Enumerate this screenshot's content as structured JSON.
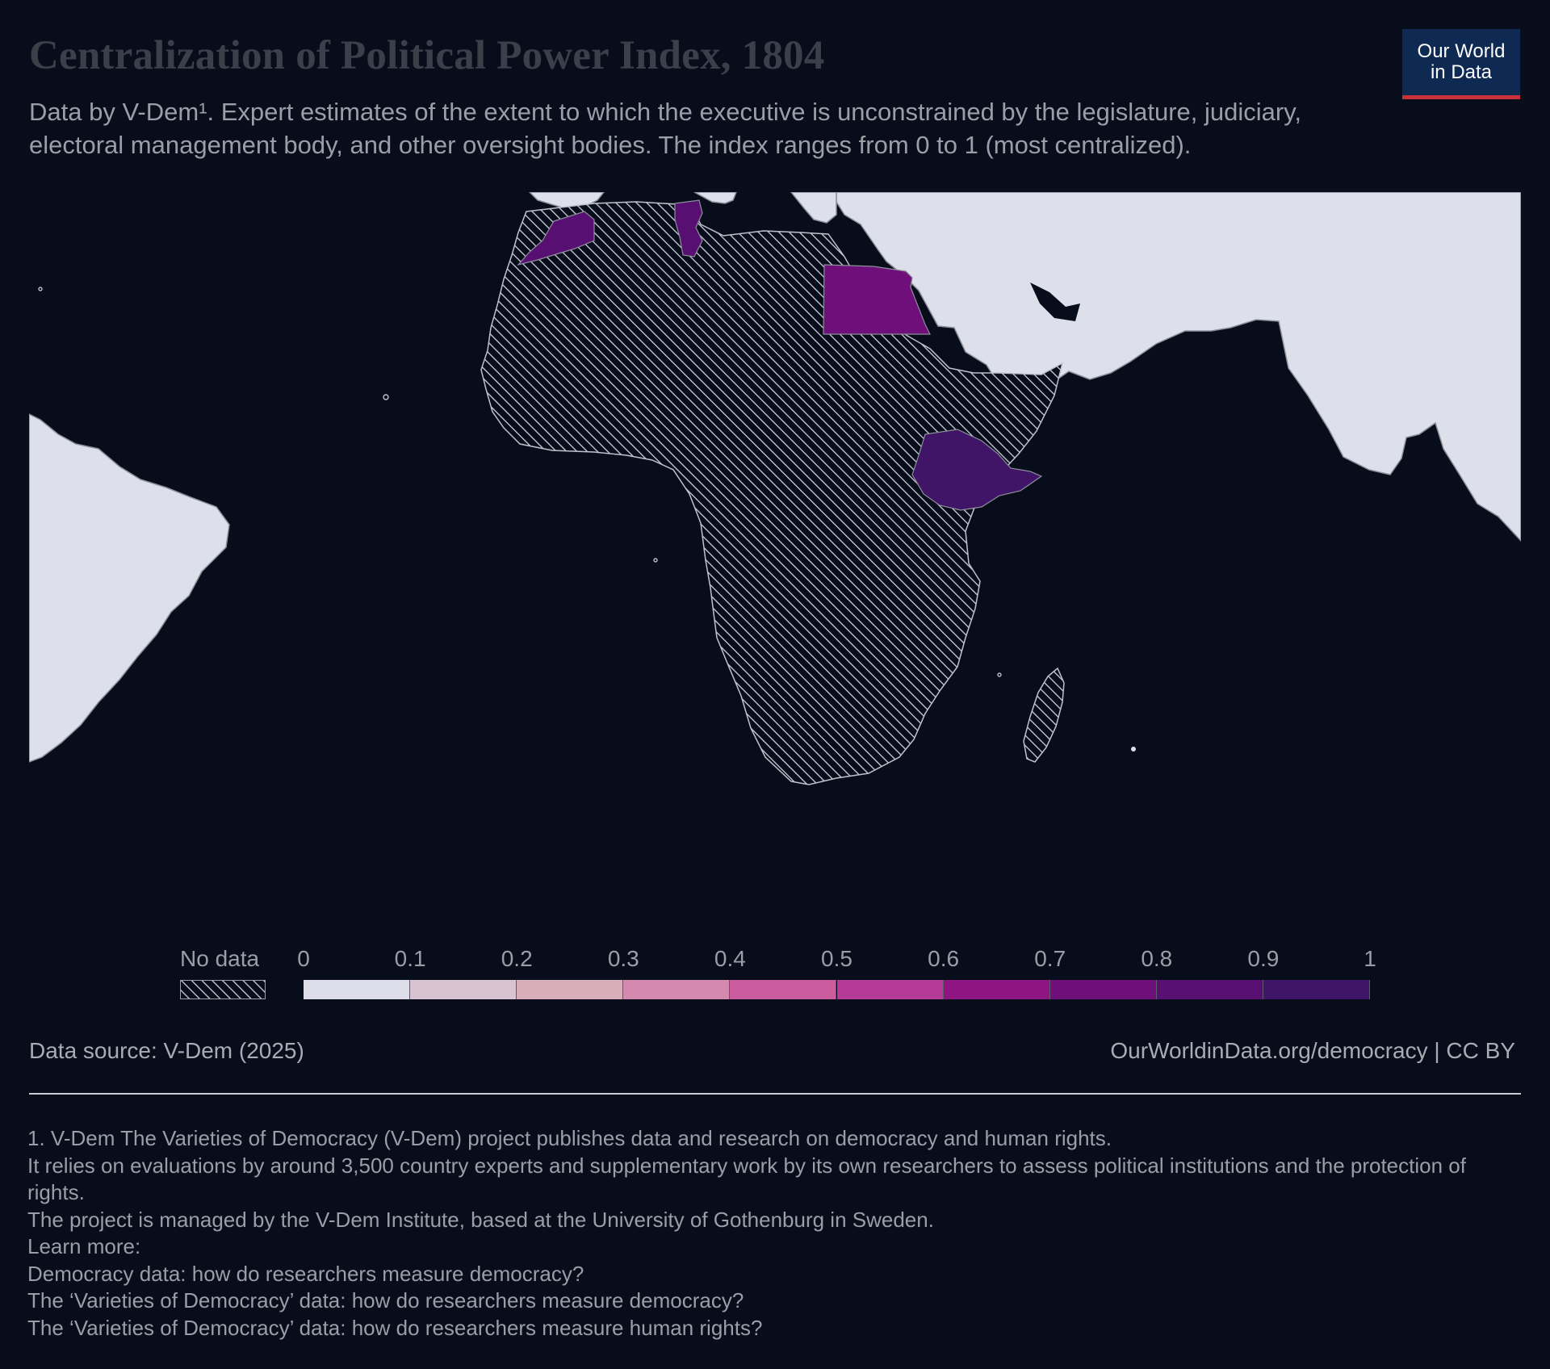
{
  "header": {
    "title": "Centralization of Political Power Index, 1804",
    "subtitle": "Data by V-Dem¹. Expert estimates of the extent to which the executive is unconstrained by the legislature, judiciary, electoral management body, and other oversight bodies. The index ranges from 0 to 1 (most centralized).",
    "logo_line1": "Our World",
    "logo_line2": "in Data"
  },
  "map": {
    "region_shown": "Africa and surroundings",
    "colored_countries": [
      "Morocco",
      "Tunisia",
      "Egypt",
      "Ethiopia"
    ],
    "no_data_fill": "hatched",
    "land_fill": "#dde0ea",
    "ocean_fill": "#070d1a"
  },
  "legend": {
    "no_data_label": "No data",
    "ticks": [
      "0",
      "0.1",
      "0.2",
      "0.3",
      "0.4",
      "0.5",
      "0.6",
      "0.7",
      "0.8",
      "0.9",
      "1"
    ],
    "colors": [
      "#dcdde8",
      "#d8c3d2",
      "#d9aebb",
      "#d48aae",
      "#cb5d9e",
      "#b53b98",
      "#8f1582",
      "#6e0f7a",
      "#571071",
      "#401466"
    ]
  },
  "footer": {
    "source": "Data source: V-Dem (2025)",
    "url": "OurWorldinData.org/democracy | CC BY",
    "notes": [
      "1. V-Dem The Varieties of Democracy (V-Dem) project publishes data and research on democracy and human rights.",
      "It relies on evaluations by around 3,500 country experts and supplementary work by its own researchers to assess political institutions and the protection of rights.",
      "The project is managed by the V-Dem Institute, based at the University of Gothenburg in Sweden.",
      "Learn more:",
      "Democracy data: how do researchers measure democracy?",
      "The ‘Varieties of Democracy’ data: how do researchers measure democracy?",
      "The ‘Varieties of Democracy’ data: how do researchers measure human rights?"
    ]
  }
}
